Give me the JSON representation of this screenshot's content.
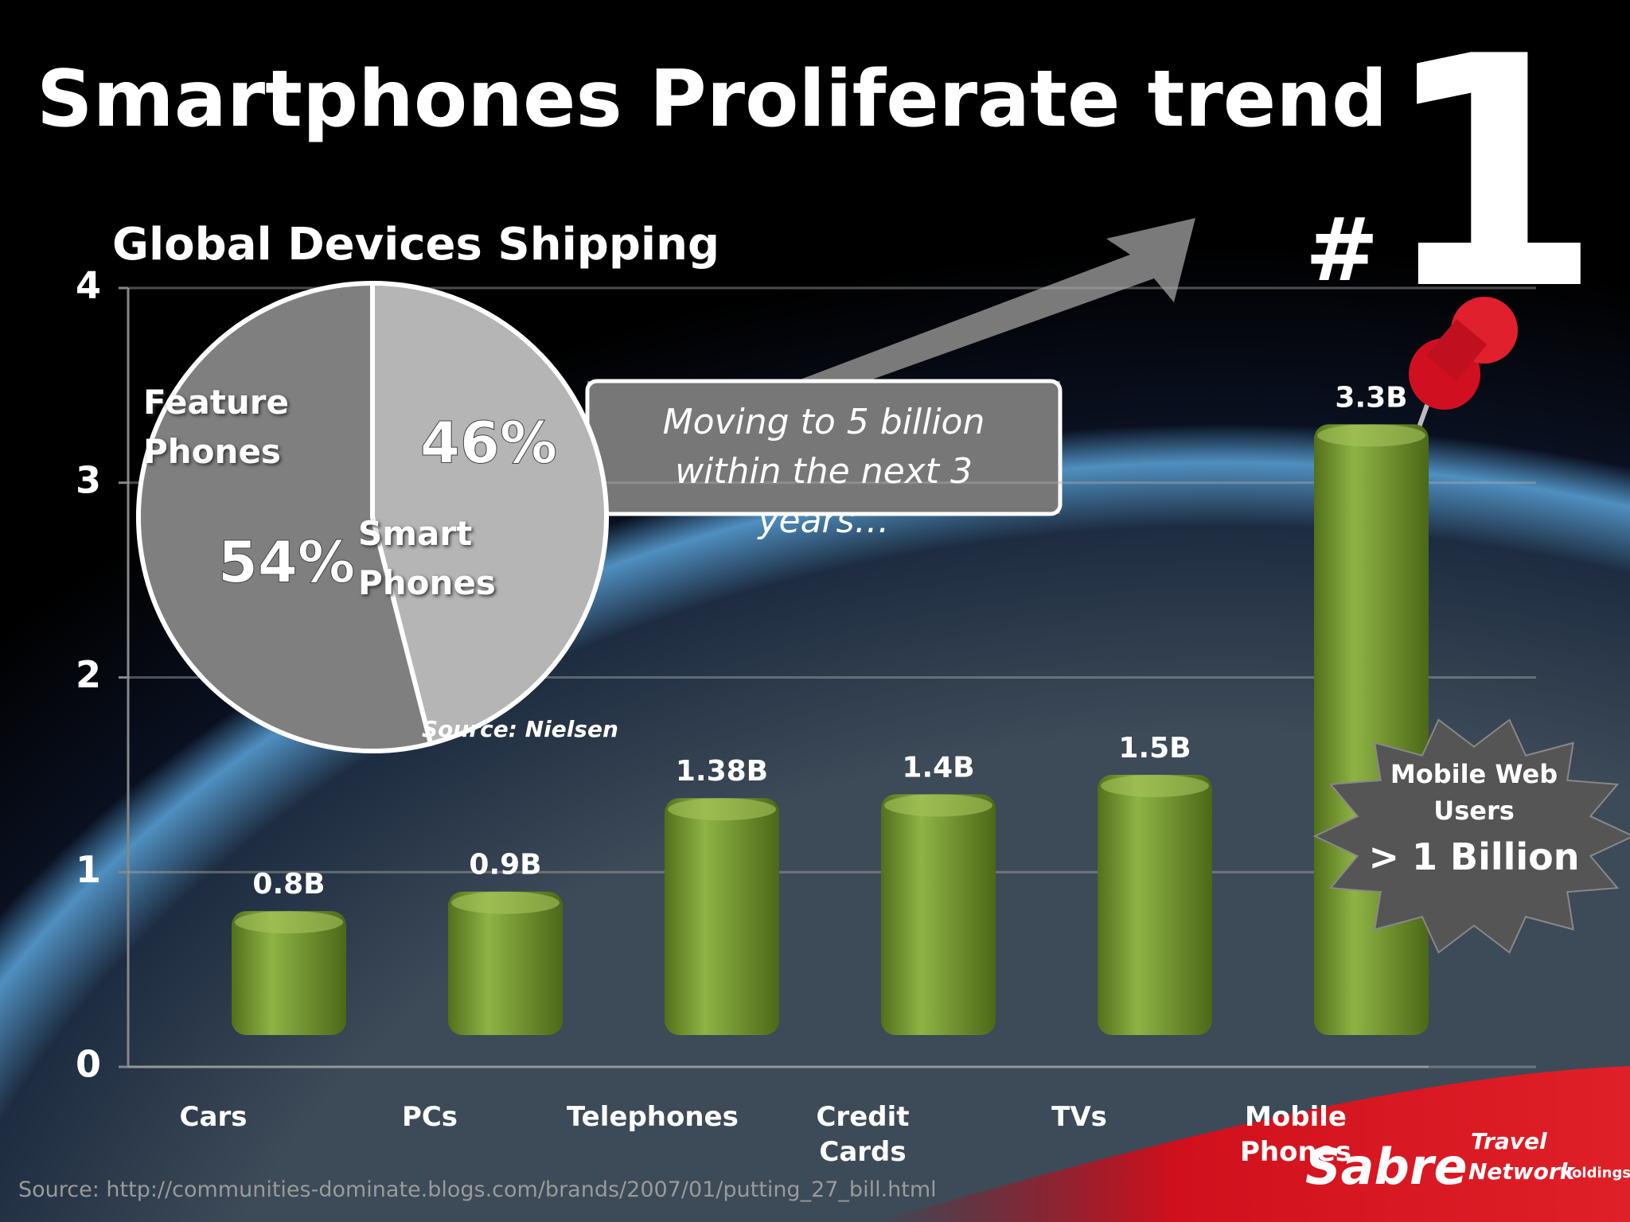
{
  "slide": {
    "title": "Smartphones Proliferate trend",
    "badge_hash": "#",
    "badge_number": "1",
    "callout": "Moving to 5 billion within the next 3 years…",
    "burst": {
      "line1": "Mobile Web Users",
      "line2": "> 1 Billion"
    },
    "footer_source": "Source: http://communities-dominate.blogs.com/brands/2007/01/putting_27_bill.html",
    "logo": {
      "brand": "Sabre",
      "line1": "Travel",
      "line2": "Network",
      "line3": "Holdings"
    }
  },
  "chart_data": [
    {
      "type": "bar",
      "categories": [
        "Cars",
        "PCs",
        "Telephones",
        "Credit Cards",
        "TVs",
        "Mobile Phones"
      ],
      "values": [
        0.8,
        0.9,
        1.38,
        1.4,
        1.5,
        3.3
      ],
      "value_labels": [
        "0.8B",
        "0.9B",
        "1.38B",
        "1.4B",
        "1.5B",
        "3.3B"
      ],
      "color": "#7a9a35",
      "ylim": [
        0,
        4
      ],
      "yticks": [
        0,
        1,
        2,
        3,
        4
      ],
      "grid": true
    },
    {
      "type": "pie",
      "title": "Global Devices Shipping",
      "source": "Source: Nielsen",
      "categories": [
        "Feature Phones",
        "Smart Phones"
      ],
      "values": [
        54,
        46
      ],
      "value_labels": [
        "54%",
        "46%"
      ],
      "colors": [
        "#7f7f7f",
        "#b5b5b5"
      ]
    }
  ]
}
